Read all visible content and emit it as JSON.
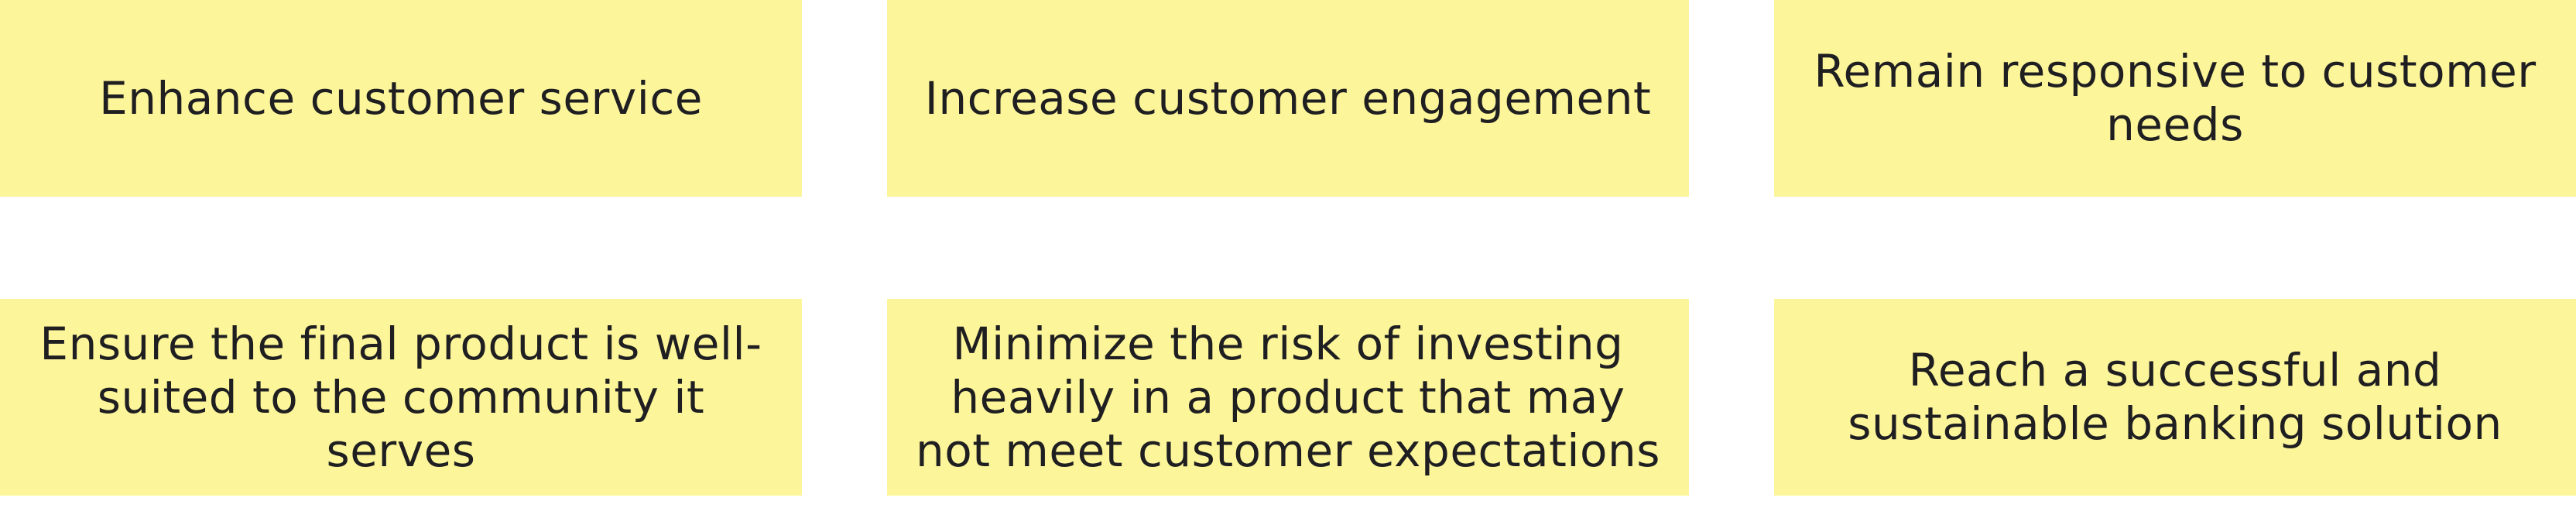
{
  "goals": [
    {
      "text": "Enhance customer service"
    },
    {
      "text": "Increase customer engagement"
    },
    {
      "text": "Remain responsive to customer needs"
    },
    {
      "text": "Ensure the final product is well-suited to the community it serves"
    },
    {
      "text": "Minimize the risk of investing heavily in a product that may not meet customer expectations"
    },
    {
      "text": "Reach a successful and sustainable banking solution"
    }
  ],
  "colors": {
    "card_background": "#fdf59a",
    "text": "#1f1f22",
    "page_background": "#ffffff"
  }
}
